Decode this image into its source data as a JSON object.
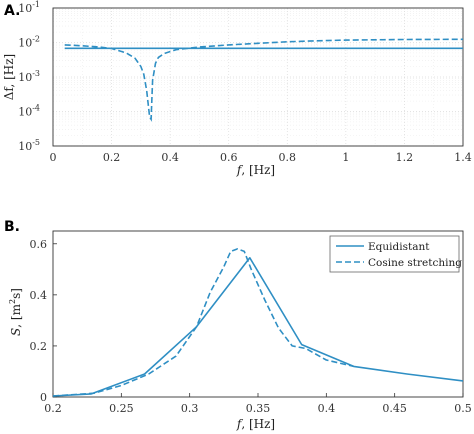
{
  "colors": {
    "series": "#2f8fc4",
    "grid": "#dadada",
    "grid_minor": "#ececec",
    "axis": "#333333"
  },
  "chart_data": [
    {
      "panel": "A.",
      "type": "line",
      "title": "",
      "xlabel_var": "f",
      "xlabel_unit": ", [Hz]",
      "ylabel": "Δf, [Hz]",
      "xlim": [
        0,
        1.4
      ],
      "ylim": [
        1e-05,
        0.1
      ],
      "yscale": "log",
      "grid": true,
      "xticks": [
        "0",
        "0.2",
        "0.4",
        "0.6",
        "0.8",
        "1",
        "1.2",
        "1.4"
      ],
      "yticks": [
        {
          "base": "10",
          "exp": "-5"
        },
        {
          "base": "10",
          "exp": "-4"
        },
        {
          "base": "10",
          "exp": "-3"
        },
        {
          "base": "10",
          "exp": "-2"
        },
        {
          "base": "10",
          "exp": "-1"
        }
      ],
      "series": [
        {
          "style": "solid",
          "x": [
            0.04,
            1.4
          ],
          "y": [
            0.0068,
            0.0068
          ]
        },
        {
          "style": "dashed",
          "x": [
            0.04,
            0.1,
            0.15,
            0.2,
            0.25,
            0.28,
            0.3,
            0.31,
            0.32,
            0.33,
            0.335,
            0.34,
            0.35,
            0.36,
            0.38,
            0.42,
            0.5,
            0.6,
            0.7,
            0.8,
            0.9,
            1.0,
            1.1,
            1.2,
            1.3,
            1.4
          ],
          "y": [
            0.0085,
            0.008,
            0.0075,
            0.0067,
            0.005,
            0.0035,
            0.002,
            0.0012,
            0.0004,
            7e-05,
            6e-05,
            0.0008,
            0.0025,
            0.0037,
            0.0048,
            0.0062,
            0.0074,
            0.0085,
            0.0095,
            0.0105,
            0.0112,
            0.0117,
            0.012,
            0.0122,
            0.0123,
            0.0124
          ]
        }
      ]
    },
    {
      "panel": "B.",
      "type": "line",
      "title": "",
      "xlabel_var": "f",
      "xlabel_unit": ", [Hz]",
      "ylabel_var": "S",
      "ylabel_unit": ", [m",
      "ylabel_unit_sup": "2",
      "ylabel_unit_end": "s]",
      "xlim": [
        0.2,
        0.5
      ],
      "ylim": [
        0,
        0.65
      ],
      "grid": false,
      "legend": "top-right",
      "xticks": [
        "0.2",
        "0.25",
        "0.3",
        "0.35",
        "0.4",
        "0.45",
        "0.5"
      ],
      "yticks": [
        "0",
        "0.2",
        "0.4",
        "0.6"
      ],
      "series": [
        {
          "name": "Equidistant",
          "style": "solid",
          "x": [
            0.2,
            0.228,
            0.267,
            0.305,
            0.344,
            0.382,
            0.42,
            0.459,
            0.5
          ],
          "y": [
            0.004,
            0.012,
            0.09,
            0.275,
            0.545,
            0.205,
            0.12,
            0.09,
            0.063
          ]
        },
        {
          "name": "Cosine stretching",
          "style": "dashed",
          "x": [
            0.2,
            0.23,
            0.25,
            0.27,
            0.29,
            0.305,
            0.315,
            0.325,
            0.33,
            0.335,
            0.34,
            0.345,
            0.355,
            0.365,
            0.375,
            0.385,
            0.4,
            0.42
          ],
          "y": [
            0.004,
            0.015,
            0.045,
            0.09,
            0.16,
            0.275,
            0.41,
            0.51,
            0.57,
            0.58,
            0.57,
            0.5,
            0.38,
            0.27,
            0.2,
            0.19,
            0.145,
            0.12
          ]
        }
      ]
    }
  ]
}
